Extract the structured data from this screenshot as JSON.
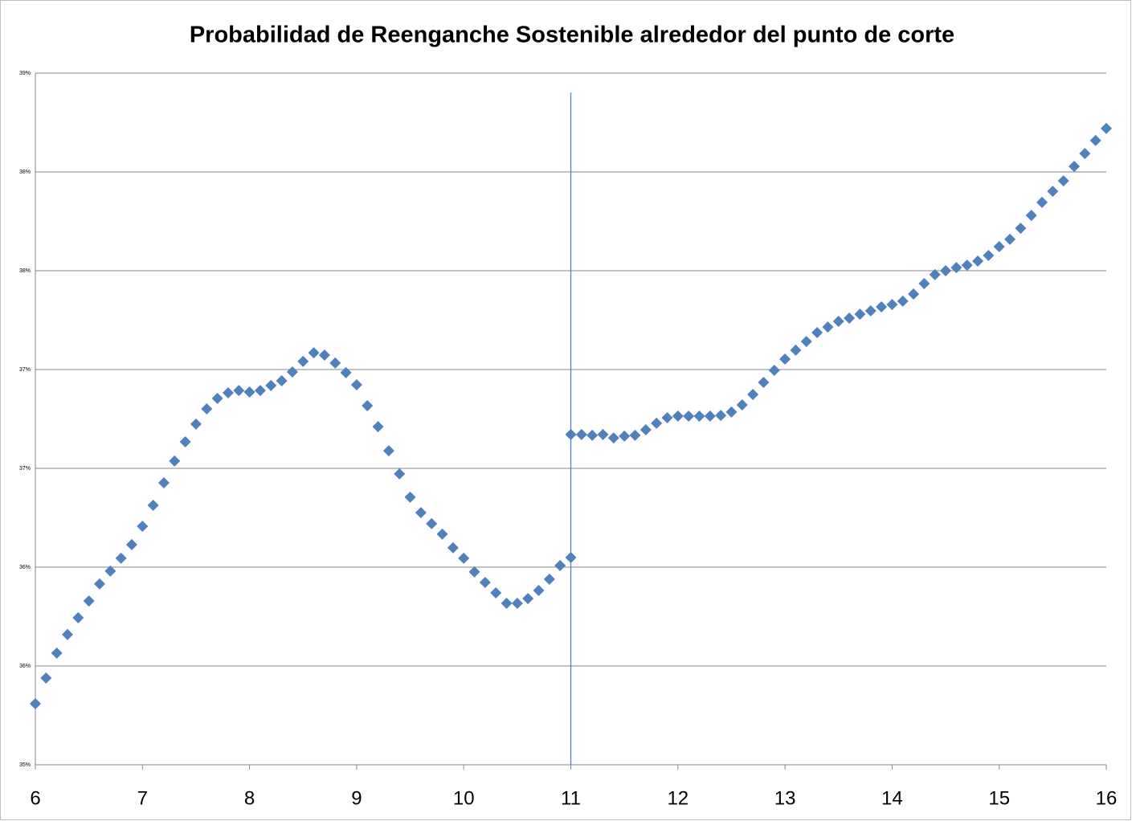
{
  "chart_data": {
    "type": "scatter",
    "title": "Probabilidad de Reenganche Sostenible alrededor del punto de corte",
    "xlim": [
      6,
      16
    ],
    "xticks": [
      6,
      7,
      8,
      9,
      10,
      11,
      12,
      13,
      14,
      15,
      16
    ],
    "ylim": [
      35,
      38.5
    ],
    "yticks": [
      {
        "value": 35,
        "label": "35%"
      },
      {
        "value": 35.5,
        "label": "36%"
      },
      {
        "value": 36,
        "label": "36%"
      },
      {
        "value": 36.5,
        "label": "37%"
      },
      {
        "value": 37,
        "label": "37%"
      },
      {
        "value": 37.5,
        "label": "38%"
      },
      {
        "value": 38,
        "label": "38%"
      },
      {
        "value": 38.5,
        "label": "39%"
      }
    ],
    "grid": true,
    "cutoff": 11,
    "series": [
      {
        "color": "#4f81bd",
        "x": [
          6.0,
          6.1,
          6.2,
          6.3,
          6.4,
          6.5,
          6.6,
          6.7,
          6.8,
          6.9,
          7.0,
          7.1,
          7.2,
          7.3,
          7.4,
          7.5,
          7.6,
          7.7,
          7.8,
          7.9,
          8.0,
          8.1,
          8.2,
          8.3,
          8.4,
          8.5,
          8.6,
          8.7,
          8.8,
          8.9,
          9.0,
          9.1,
          9.2,
          9.3,
          9.4,
          9.5,
          9.6,
          9.7,
          9.8,
          9.9,
          10.0,
          10.1,
          10.2,
          10.3,
          10.4,
          10.5,
          10.6,
          10.7,
          10.8,
          10.9,
          11.0
        ],
        "values": [
          35.309,
          35.439,
          35.565,
          35.659,
          35.744,
          35.829,
          35.915,
          35.98,
          36.045,
          36.114,
          36.207,
          36.313,
          36.427,
          36.537,
          36.634,
          36.724,
          36.801,
          36.854,
          36.882,
          36.894,
          36.886,
          36.894,
          36.919,
          36.943,
          36.988,
          37.041,
          37.085,
          37.073,
          37.033,
          36.984,
          36.923,
          36.817,
          36.711,
          36.589,
          36.472,
          36.354,
          36.276,
          36.22,
          36.167,
          36.098,
          36.045,
          35.976,
          35.923,
          35.87,
          35.817,
          35.817,
          35.841,
          35.882,
          35.939,
          36.008,
          36.049
        ]
      },
      {
        "color": "#4f81bd",
        "x": [
          11.0,
          11.1,
          11.2,
          11.3,
          11.4,
          11.5,
          11.6,
          11.7,
          11.8,
          11.9,
          12.0,
          12.1,
          12.2,
          12.3,
          12.4,
          12.5,
          12.6,
          12.7,
          12.8,
          12.9,
          13.0,
          13.1,
          13.2,
          13.3,
          13.4,
          13.5,
          13.6,
          13.7,
          13.8,
          13.9,
          14.0,
          14.1,
          14.2,
          14.3,
          14.4,
          14.5,
          14.6,
          14.7,
          14.8,
          14.9,
          15.0,
          15.1,
          15.2,
          15.3,
          15.4,
          15.5,
          15.6,
          15.7,
          15.8,
          15.9,
          16.0
        ],
        "values": [
          36.671,
          36.671,
          36.667,
          36.671,
          36.654,
          36.663,
          36.667,
          36.695,
          36.728,
          36.756,
          36.764,
          36.764,
          36.764,
          36.764,
          36.768,
          36.785,
          36.821,
          36.874,
          36.935,
          36.996,
          37.053,
          37.098,
          37.142,
          37.187,
          37.215,
          37.244,
          37.26,
          37.28,
          37.297,
          37.317,
          37.329,
          37.346,
          37.382,
          37.435,
          37.48,
          37.5,
          37.516,
          37.528,
          37.549,
          37.577,
          37.622,
          37.659,
          37.715,
          37.78,
          37.846,
          37.902,
          37.955,
          38.028,
          38.093,
          38.159,
          38.22
        ]
      }
    ]
  }
}
